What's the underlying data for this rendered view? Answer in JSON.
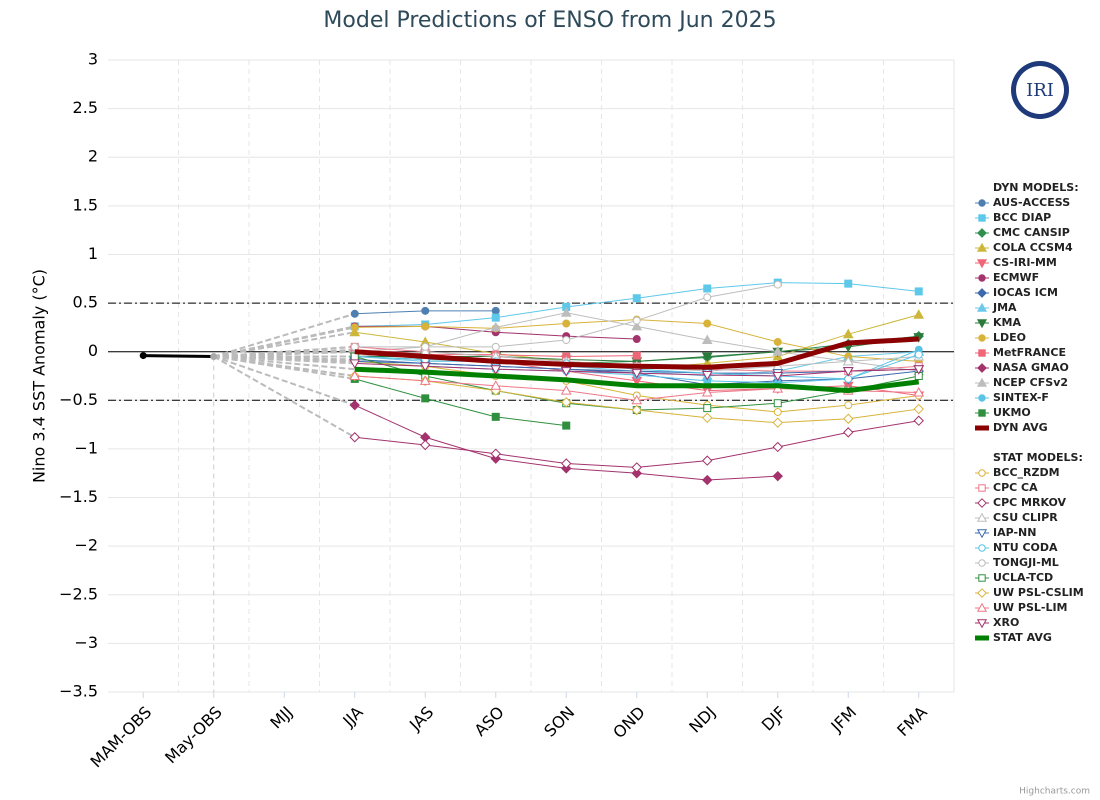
{
  "chart_data": {
    "type": "line",
    "title": "Model Predictions of ENSO from Jun 2025",
    "y_axis_label": "Nino 3.4 SST Anomaly (°C)",
    "credits": "Highcharts.com",
    "logo_text": "IRI",
    "categories": [
      "MAM-OBS",
      "May-OBS",
      "MJJ",
      "JJA",
      "JAS",
      "ASO",
      "SON",
      "OND",
      "NDJ",
      "DJF",
      "JFM",
      "FMA"
    ],
    "ylim": [
      -3.5,
      3
    ],
    "yticks": [
      3,
      2.5,
      2,
      1.5,
      1,
      0.5,
      0,
      {
        "value": -0.5,
        "label": "−0.5"
      },
      {
        "value": -1,
        "label": "−1"
      },
      {
        "value": -1.5,
        "label": "−1.5"
      },
      {
        "value": -2,
        "label": "−2"
      },
      {
        "value": -2.5,
        "label": "−2.5"
      },
      {
        "value": -3,
        "label": "−3"
      },
      {
        "value": -3.5,
        "label": "−3.5"
      }
    ],
    "reference_lines": [
      0.5,
      -0.5
    ],
    "grid": true,
    "legend_position": "right",
    "observed": {
      "color": "#000000",
      "values": [
        -0.04,
        -0.05,
        null,
        null,
        null,
        null,
        null,
        null,
        null,
        null,
        null,
        null
      ]
    },
    "groups": [
      {
        "title": "DYN MODELS:",
        "filled": true,
        "series": [
          {
            "name": "AUS-ACCESS",
            "color": "#4f7fb0",
            "marker": "circle",
            "values": [
              null,
              null,
              null,
              0.39,
              0.42,
              0.42,
              null,
              null,
              null,
              null,
              null,
              null
            ]
          },
          {
            "name": "BCC DIAP",
            "color": "#5ec8ea",
            "marker": "square",
            "values": [
              null,
              null,
              null,
              0.26,
              0.28,
              0.35,
              0.46,
              0.55,
              0.65,
              0.71,
              0.7,
              0.62
            ]
          },
          {
            "name": "CMC CANSIP",
            "color": "#2f8f4f",
            "marker": "diamond",
            "values": [
              null,
              null,
              null,
              -0.05,
              -0.08,
              -0.1,
              -0.12,
              -0.1,
              -0.06,
              0.0,
              0.08,
              0.16
            ]
          },
          {
            "name": "COLA CCSM4",
            "color": "#cdb73a",
            "marker": "triangle",
            "values": [
              null,
              null,
              null,
              0.2,
              0.1,
              -0.02,
              -0.1,
              -0.18,
              -0.12,
              -0.05,
              0.18,
              0.38
            ]
          },
          {
            "name": "CS-IRI-MM",
            "color": "#ee6677",
            "marker": "triangle-down",
            "values": [
              null,
              null,
              null,
              0.02,
              -0.02,
              -0.1,
              -0.2,
              -0.3,
              -0.4,
              -0.38,
              -0.35,
              -0.45
            ]
          },
          {
            "name": "ECMWF",
            "color": "#a3326d",
            "marker": "circle",
            "values": [
              null,
              null,
              null,
              0.26,
              0.26,
              0.2,
              0.16,
              0.13,
              null,
              null,
              null,
              null
            ]
          },
          {
            "name": "IOCAS ICM",
            "color": "#3d6aad",
            "marker": "diamond",
            "values": [
              null,
              null,
              null,
              -0.08,
              -0.12,
              -0.15,
              -0.18,
              -0.22,
              -0.34,
              -0.3,
              -0.28,
              -0.2
            ]
          },
          {
            "name": "JMA",
            "color": "#6cc9e8",
            "marker": "triangle",
            "values": [
              null,
              null,
              null,
              -0.05,
              -0.1,
              -0.1,
              -0.15,
              -0.2,
              -0.25,
              -0.2,
              -0.05,
              0.0
            ]
          },
          {
            "name": "KMA",
            "color": "#2b7a3b",
            "marker": "triangle-down",
            "values": [
              null,
              null,
              null,
              -0.05,
              -0.05,
              -0.05,
              -0.08,
              -0.1,
              -0.05,
              0.0,
              0.05,
              0.15
            ]
          },
          {
            "name": "LDEO",
            "color": "#d8b33a",
            "marker": "circle",
            "values": [
              null,
              null,
              null,
              0.25,
              0.26,
              0.24,
              0.29,
              0.33,
              0.29,
              0.1,
              -0.05,
              -0.1
            ]
          },
          {
            "name": "MetFRANCE",
            "color": "#ee6677",
            "marker": "square",
            "values": [
              null,
              null,
              null,
              0.0,
              -0.03,
              -0.03,
              -0.05,
              -0.04,
              null,
              null,
              null,
              null
            ]
          },
          {
            "name": "NASA GMAO",
            "color": "#a3326d",
            "marker": "diamond",
            "values": [
              null,
              null,
              null,
              -0.55,
              -0.88,
              -1.1,
              -1.2,
              -1.25,
              -1.32,
              -1.28,
              null,
              null
            ]
          },
          {
            "name": "NCEP CFSv2",
            "color": "#bdbdbd",
            "marker": "triangle",
            "values": [
              null,
              null,
              null,
              0.0,
              0.05,
              0.25,
              0.4,
              0.26,
              0.12,
              0.0,
              -0.1,
              -0.2
            ]
          },
          {
            "name": "SINTEX-F",
            "color": "#5bc3e6",
            "marker": "circle",
            "values": [
              null,
              null,
              null,
              -0.1,
              -0.15,
              -0.18,
              -0.2,
              -0.24,
              -0.3,
              -0.32,
              -0.28,
              0.02
            ]
          },
          {
            "name": "UKMO",
            "color": "#2f8f3f",
            "marker": "square",
            "values": [
              null,
              null,
              null,
              -0.28,
              -0.48,
              -0.67,
              -0.76,
              null,
              null,
              null,
              null,
              null
            ]
          },
          {
            "name": "DYN AVG",
            "color": "#8b0000",
            "marker": "none",
            "values": [
              null,
              null,
              null,
              0.0,
              -0.05,
              -0.1,
              -0.13,
              -0.15,
              -0.16,
              -0.12,
              0.09,
              0.13
            ]
          }
        ]
      },
      {
        "title": "STAT MODELS:",
        "filled": false,
        "series": [
          {
            "name": "BCC_RZDM",
            "color": "#d8b33a",
            "marker": "circle",
            "values": [
              null,
              null,
              null,
              -0.1,
              -0.15,
              -0.25,
              -0.3,
              -0.45,
              -0.55,
              -0.62,
              -0.55,
              -0.45
            ]
          },
          {
            "name": "CPC CA",
            "color": "#ee7788",
            "marker": "square",
            "values": [
              null,
              null,
              null,
              0.05,
              0.0,
              -0.05,
              -0.1,
              -0.15,
              -0.18,
              -0.2,
              -0.2,
              -0.15
            ]
          },
          {
            "name": "CPC MRKOV",
            "color": "#a3326d",
            "marker": "diamond",
            "values": [
              null,
              null,
              null,
              -0.88,
              -0.96,
              -1.05,
              -1.15,
              -1.19,
              -1.12,
              -0.98,
              -0.83,
              -0.71
            ]
          },
          {
            "name": "CSU CLIPR",
            "color": "#bdbdbd",
            "marker": "triangle",
            "values": [
              null,
              null,
              null,
              -0.05,
              0.0,
              -0.05,
              -0.1,
              -0.15,
              -0.2,
              -0.15,
              -0.1,
              -0.05
            ]
          },
          {
            "name": "IAP-NN",
            "color": "#3d6aad",
            "marker": "triangle-down",
            "values": [
              null,
              null,
              null,
              -0.1,
              -0.12,
              -0.15,
              -0.18,
              -0.2,
              -0.22,
              -0.22,
              -0.2,
              -0.18
            ]
          },
          {
            "name": "NTU CODA",
            "color": "#5bc3e6",
            "marker": "circle",
            "values": [
              null,
              null,
              null,
              -0.05,
              -0.08,
              -0.1,
              -0.12,
              -0.18,
              -0.22,
              -0.25,
              -0.28,
              -0.03
            ]
          },
          {
            "name": "TONGJI-ML",
            "color": "#bdbdbd",
            "marker": "circle",
            "values": [
              null,
              null,
              null,
              0.05,
              0.05,
              0.05,
              0.12,
              0.32,
              0.56,
              0.69,
              null,
              null
            ]
          },
          {
            "name": "UCLA-TCD",
            "color": "#2f8f3f",
            "marker": "square",
            "values": [
              null,
              null,
              null,
              -0.05,
              -0.25,
              -0.4,
              -0.53,
              -0.6,
              -0.58,
              -0.53,
              -0.4,
              -0.25
            ]
          },
          {
            "name": "UW PSL-CSLIM",
            "color": "#d8b33a",
            "marker": "diamond",
            "values": [
              null,
              null,
              null,
              -0.25,
              -0.3,
              -0.4,
              -0.52,
              -0.6,
              -0.68,
              -0.73,
              -0.69,
              -0.59
            ]
          },
          {
            "name": "UW PSL-LIM",
            "color": "#ee7788",
            "marker": "triangle",
            "values": [
              null,
              null,
              null,
              -0.25,
              -0.3,
              -0.35,
              -0.4,
              -0.5,
              -0.42,
              -0.38,
              -0.4,
              -0.42
            ]
          },
          {
            "name": "XRO",
            "color": "#a3326d",
            "marker": "triangle-down",
            "values": [
              null,
              null,
              null,
              -0.12,
              -0.15,
              -0.18,
              -0.2,
              -0.22,
              -0.24,
              -0.25,
              -0.2,
              -0.18
            ]
          },
          {
            "name": "STAT AVG",
            "color": "#008000",
            "marker": "none",
            "values": [
              null,
              null,
              null,
              -0.18,
              -0.21,
              -0.25,
              -0.29,
              -0.35,
              -0.35,
              -0.35,
              -0.4,
              -0.31
            ]
          }
        ]
      }
    ]
  }
}
